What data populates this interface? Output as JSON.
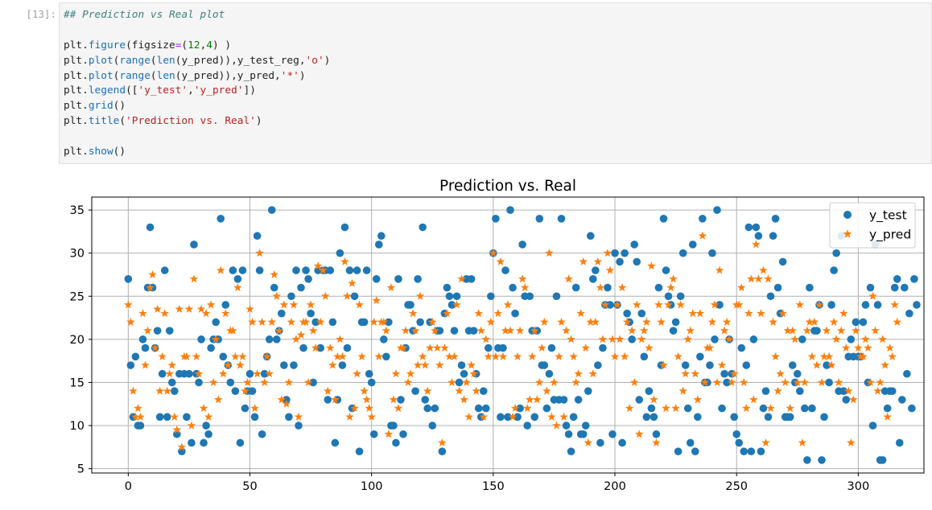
{
  "cell": {
    "prompt": "[13]:",
    "code_lines": [
      [
        {
          "t": "## Prediction vs Real plot",
          "c": "cm"
        }
      ],
      [],
      [
        {
          "t": "plt."
        },
        {
          "t": "figure",
          "c": "fn"
        },
        {
          "t": "(figsize"
        },
        {
          "t": "=",
          "c": "op"
        },
        {
          "t": "("
        },
        {
          "t": "12",
          "c": "nu"
        },
        {
          "t": ","
        },
        {
          "t": "4",
          "c": "nu"
        },
        {
          "t": ") )"
        }
      ],
      [
        {
          "t": "plt."
        },
        {
          "t": "plot",
          "c": "fn"
        },
        {
          "t": "("
        },
        {
          "t": "range",
          "c": "fn"
        },
        {
          "t": "("
        },
        {
          "t": "len",
          "c": "fn"
        },
        {
          "t": "(y_pred)),y_test_reg,"
        },
        {
          "t": "'o'",
          "c": "st"
        },
        {
          "t": ")"
        }
      ],
      [
        {
          "t": "plt."
        },
        {
          "t": "plot",
          "c": "fn"
        },
        {
          "t": "("
        },
        {
          "t": "range",
          "c": "fn"
        },
        {
          "t": "("
        },
        {
          "t": "len",
          "c": "fn"
        },
        {
          "t": "(y_pred)),y_pred,"
        },
        {
          "t": "'*'",
          "c": "st"
        },
        {
          "t": ")"
        }
      ],
      [
        {
          "t": "plt."
        },
        {
          "t": "legend",
          "c": "fn"
        },
        {
          "t": "(["
        },
        {
          "t": "'y_test'",
          "c": "st"
        },
        {
          "t": ","
        },
        {
          "t": "'y_pred'",
          "c": "st"
        },
        {
          "t": "])"
        }
      ],
      [
        {
          "t": "plt."
        },
        {
          "t": "grid",
          "c": "fn"
        },
        {
          "t": "()"
        }
      ],
      [
        {
          "t": "plt."
        },
        {
          "t": "title",
          "c": "fn"
        },
        {
          "t": "("
        },
        {
          "t": "'Prediction vs. Real'",
          "c": "st"
        },
        {
          "t": ")"
        }
      ],
      [],
      [
        {
          "t": "plt."
        },
        {
          "t": "show",
          "c": "fn"
        },
        {
          "t": "()"
        }
      ]
    ]
  },
  "chart_data": {
    "type": "scatter",
    "title": "Prediction vs. Real",
    "xlabel": "",
    "ylabel": "",
    "xlim": [
      -15,
      327
    ],
    "ylim": [
      4.5,
      36.5
    ],
    "xticks": [
      0,
      50,
      100,
      150,
      200,
      250,
      300
    ],
    "yticks": [
      5,
      10,
      15,
      20,
      25,
      30,
      35
    ],
    "grid": true,
    "legend_position": "top-right",
    "series": [
      {
        "name": "y_test",
        "marker": "o",
        "color": "#1f77b4",
        "values": [
          27,
          17,
          11,
          18,
          10,
          10,
          20,
          19,
          26,
          33,
          26,
          19,
          21,
          11,
          16,
          28,
          11,
          21,
          15,
          14,
          9,
          16,
          7,
          16,
          11,
          16,
          8,
          31,
          16,
          15,
          20,
          8,
          10,
          9,
          19,
          20,
          22,
          20,
          34,
          18,
          24,
          17,
          15,
          28,
          14,
          27,
          8,
          28,
          12,
          14,
          16,
          14,
          11,
          32,
          28,
          9,
          16,
          18,
          20,
          35,
          26,
          20,
          21,
          23,
          17,
          13,
          11,
          25,
          17,
          28,
          10,
          26,
          19,
          28,
          27,
          23,
          15,
          22,
          28,
          19,
          28,
          28,
          13,
          28,
          22,
          8,
          13,
          30,
          17,
          33,
          19,
          28,
          12,
          25,
          28,
          7,
          22,
          22,
          28,
          16,
          15,
          9,
          27,
          31,
          32,
          20,
          18,
          22,
          10,
          10,
          8,
          27,
          13,
          9,
          19,
          24,
          24,
          21,
          14,
          27,
          22,
          33,
          13,
          12,
          22,
          10,
          12,
          21,
          21,
          7,
          23,
          26,
          25,
          24,
          21,
          25,
          15,
          17,
          16,
          27,
          21,
          27,
          21,
          16,
          12,
          11,
          14,
          12,
          19,
          25,
          30,
          34,
          19,
          11,
          19,
          28,
          11,
          35,
          26,
          23,
          11,
          12,
          31,
          25,
          10,
          25,
          21,
          11,
          21,
          34,
          17,
          17,
          12,
          16,
          19,
          13,
          25,
          13,
          34,
          13,
          10,
          9,
          7,
          11,
          26,
          13,
          9,
          9,
          10,
          14,
          32,
          27,
          28,
          17,
          8,
          19,
          24,
          26,
          24,
          9,
          30,
          24,
          29,
          8,
          30,
          23,
          22,
          20,
          31,
          29,
          13,
          23,
          18,
          11,
          14,
          12,
          11,
          9,
          26,
          17,
          34,
          28,
          25,
          24,
          21,
          22,
          7,
          25,
          30,
          17,
          12,
          8,
          31,
          7,
          11,
          18,
          34,
          15,
          15,
          17,
          30,
          20,
          35,
          24,
          12,
          16,
          15,
          20,
          16,
          11,
          9,
          8,
          19,
          7,
          17,
          33,
          7,
          20,
          33,
          32,
          7,
          12,
          14,
          11,
          25,
          32,
          34,
          26,
          23,
          29,
          11,
          11,
          11,
          17,
          15,
          16,
          14,
          20,
          12,
          6,
          26,
          12,
          21,
          21,
          24,
          6,
          11,
          17,
          15,
          24,
          28,
          30,
          14,
          32,
          14,
          13,
          18,
          20,
          18,
          22,
          18,
          18,
          22,
          24,
          15,
          26,
          10,
          31,
          24,
          6,
          6,
          14,
          12,
          14,
          14,
          26,
          27,
          8,
          13,
          26,
          16,
          23,
          12,
          27,
          24
        ]
      },
      {
        "name": "y_pred",
        "marker": "*",
        "color": "#ff7f0e",
        "values": [
          24,
          22,
          14,
          11,
          12,
          11,
          23,
          17,
          21,
          26,
          27.5,
          19,
          23.5,
          14,
          18,
          23,
          14,
          16,
          17,
          11,
          9.5,
          23.5,
          7.5,
          18,
          18,
          23.5,
          10,
          27,
          18,
          16,
          23.5,
          12,
          23,
          11,
          24,
          15,
          20,
          13,
          28,
          16,
          23,
          17,
          21,
          21,
          18,
          26,
          17,
          18,
          14,
          15,
          23.5,
          22,
          12,
          16,
          30,
          22,
          15,
          18,
          16,
          22,
          27.5,
          25,
          21,
          13,
          24,
          12.5,
          15,
          22,
          24,
          20,
          11,
          20.5,
          22,
          22,
          15,
          24,
          21,
          19,
          28.5,
          22,
          28,
          25,
          14,
          19,
          17,
          13,
          18,
          20,
          18,
          29,
          25,
          11,
          26.5,
          12,
          16,
          24,
          18,
          14,
          13,
          12,
          11,
          22,
          24.5,
          18,
          22,
          22,
          21,
          9,
          26,
          13,
          16,
          12,
          19,
          19,
          21,
          15,
          16,
          23,
          21,
          17,
          25,
          18,
          17,
          14,
          19,
          22,
          21,
          19,
          17,
          8,
          19,
          23,
          18,
          15,
          18,
          24,
          14,
          27,
          13,
          15,
          11,
          17,
          16,
          14,
          23,
          21,
          11,
          20,
          18,
          22,
          30,
          18,
          23,
          29,
          18,
          21,
          24,
          21,
          11,
          12,
          18,
          21,
          27,
          26,
          12,
          13,
          18,
          21,
          13,
          15,
          19,
          22,
          14,
          30,
          11,
          15,
          10,
          18,
          22,
          11,
          21,
          27,
          20,
          18,
          15,
          16,
          23,
          29,
          19,
          8,
          22,
          16,
          22,
          29,
          26,
          20,
          24,
          30,
          28,
          20,
          18,
          24,
          20,
          26,
          18,
          22,
          12,
          21,
          15,
          24,
          9,
          20,
          21,
          22,
          19,
          28.5,
          13,
          8,
          24,
          22,
          17,
          12,
          24,
          26,
          27,
          12,
          18,
          24,
          14,
          16,
          20,
          21,
          23,
          16,
          13,
          23,
          32,
          15,
          19,
          19,
          22,
          24,
          15,
          28,
          17,
          21,
          22,
          20,
          15,
          16,
          24,
          24,
          26,
          15,
          12,
          23,
          27,
          13,
          31,
          27,
          23,
          28,
          8,
          27,
          12,
          22,
          18,
          14,
          16,
          23,
          15,
          21,
          12,
          21,
          20,
          15,
          24,
          8,
          15,
          21,
          22,
          18,
          22,
          17,
          24,
          15,
          18,
          21,
          18,
          17,
          22,
          20,
          15,
          21,
          23,
          19,
          14,
          8,
          13,
          21,
          19,
          18,
          18,
          20,
          19,
          15,
          25,
          21,
          14,
          15,
          20,
          17,
          11,
          19,
          18,
          24,
          22
        ]
      }
    ]
  }
}
